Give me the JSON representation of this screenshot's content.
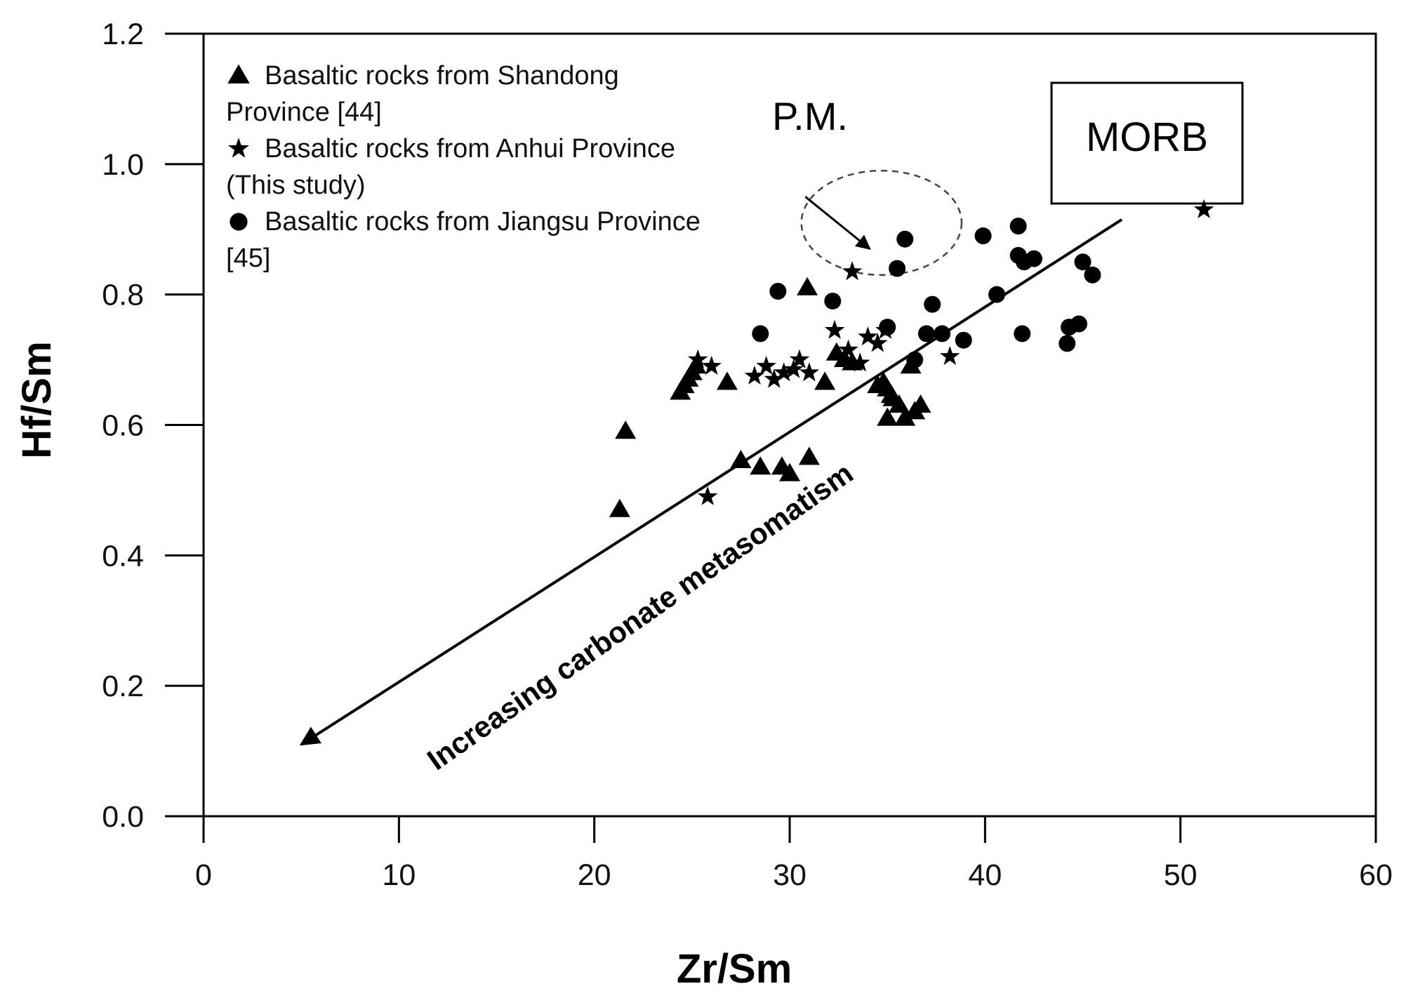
{
  "chart_data": {
    "type": "scatter",
    "title": "",
    "xlabel": "Zr/Sm",
    "ylabel": "Hf/Sm",
    "xlim": [
      0,
      60
    ],
    "ylim": [
      0,
      1.2
    ],
    "x_ticks": [
      "0",
      "10",
      "20",
      "30",
      "40",
      "50",
      "60"
    ],
    "y_ticks": [
      "0.0",
      "0.2",
      "0.4",
      "0.6",
      "0.8",
      "1.0",
      "1.2"
    ],
    "grid": false,
    "legend_position": "top-left",
    "legend": [
      {
        "marker": "triangle",
        "lines": [
          "Basaltic rocks from Shandong",
          "Province  [44]"
        ]
      },
      {
        "marker": "star",
        "lines": [
          "Basaltic rocks from Anhui Province",
          "(This  study)"
        ]
      },
      {
        "marker": "circle",
        "lines": [
          "Basaltic rocks from Jiangsu Province",
          "[45]"
        ]
      }
    ],
    "annotations": {
      "pm_label": "P.M.",
      "morb_label": "MORB",
      "trend_label": "Increasing carbonate metasomatism"
    },
    "pm_ellipse": {
      "cx": 34.7,
      "cy": 0.91,
      "rx": 4.1,
      "ry": 0.08
    },
    "trend_arrow": {
      "from": [
        47,
        0.915
      ],
      "to": [
        5,
        0.11
      ]
    },
    "pm_arrow": {
      "from": [
        30.8,
        0.95
      ],
      "to": [
        34.1,
        0.87
      ]
    },
    "series": [
      {
        "marker": "triangle",
        "points": [
          [
            21.3,
            0.47
          ],
          [
            21.6,
            0.59
          ],
          [
            24.4,
            0.65
          ],
          [
            24.6,
            0.66
          ],
          [
            24.8,
            0.67
          ],
          [
            25.0,
            0.68
          ],
          [
            25.2,
            0.69
          ],
          [
            26.8,
            0.665
          ],
          [
            27.5,
            0.545
          ],
          [
            28.5,
            0.535
          ],
          [
            29.6,
            0.535
          ],
          [
            30.0,
            0.525
          ],
          [
            30.9,
            0.81
          ],
          [
            31.0,
            0.55
          ],
          [
            31.8,
            0.665
          ],
          [
            32.4,
            0.71
          ],
          [
            32.8,
            0.7
          ],
          [
            33.2,
            0.695
          ],
          [
            34.5,
            0.66
          ],
          [
            34.8,
            0.665
          ],
          [
            35.0,
            0.655
          ],
          [
            35.2,
            0.645
          ],
          [
            35.0,
            0.61
          ],
          [
            35.3,
            0.64
          ],
          [
            35.6,
            0.63
          ],
          [
            35.9,
            0.61
          ],
          [
            36.2,
            0.69
          ],
          [
            36.4,
            0.62
          ],
          [
            36.7,
            0.63
          ]
        ]
      },
      {
        "marker": "star",
        "points": [
          [
            25.3,
            0.7
          ],
          [
            26.0,
            0.69
          ],
          [
            25.8,
            0.49
          ],
          [
            28.2,
            0.675
          ],
          [
            28.8,
            0.69
          ],
          [
            29.2,
            0.67
          ],
          [
            29.7,
            0.68
          ],
          [
            30.2,
            0.685
          ],
          [
            30.5,
            0.7
          ],
          [
            31.0,
            0.68
          ],
          [
            32.3,
            0.745
          ],
          [
            33.0,
            0.715
          ],
          [
            33.2,
            0.835
          ],
          [
            33.6,
            0.695
          ],
          [
            34.0,
            0.735
          ],
          [
            34.5,
            0.725
          ],
          [
            34.9,
            0.745
          ],
          [
            38.2,
            0.705
          ],
          [
            51.2,
            0.93
          ]
        ]
      },
      {
        "marker": "circle",
        "points": [
          [
            28.5,
            0.74
          ],
          [
            29.4,
            0.805
          ],
          [
            32.2,
            0.79
          ],
          [
            35.0,
            0.75
          ],
          [
            35.5,
            0.84
          ],
          [
            35.9,
            0.885
          ],
          [
            36.4,
            0.7
          ],
          [
            37.3,
            0.785
          ],
          [
            37.0,
            0.74
          ],
          [
            37.8,
            0.74
          ],
          [
            38.9,
            0.73
          ],
          [
            39.9,
            0.89
          ],
          [
            40.6,
            0.8
          ],
          [
            41.7,
            0.905
          ],
          [
            41.7,
            0.86
          ],
          [
            41.9,
            0.74
          ],
          [
            42.0,
            0.85
          ],
          [
            42.5,
            0.855
          ],
          [
            44.2,
            0.725
          ],
          [
            44.3,
            0.75
          ],
          [
            44.8,
            0.755
          ],
          [
            45.0,
            0.85
          ],
          [
            45.5,
            0.83
          ]
        ]
      }
    ]
  }
}
